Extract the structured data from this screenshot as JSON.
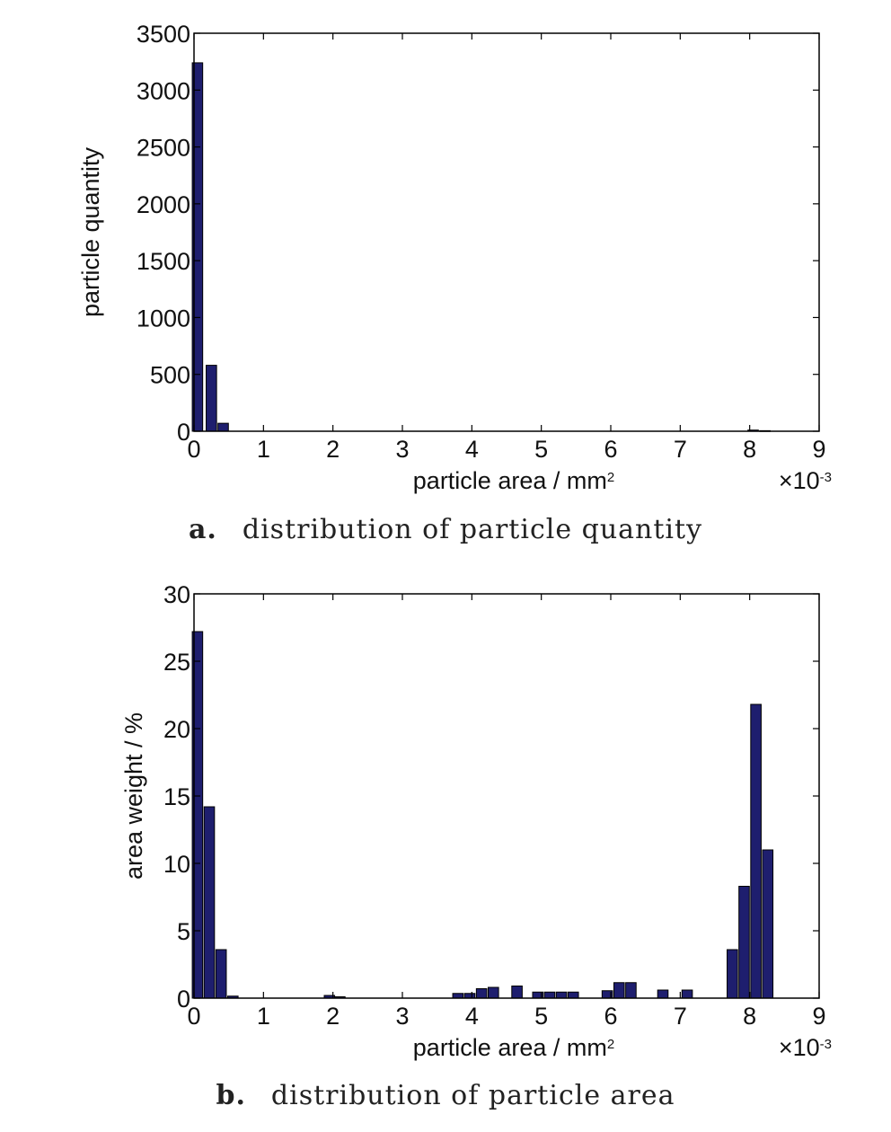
{
  "chart_data": [
    {
      "type": "bar",
      "x": [
        0.05,
        0.25,
        0.42,
        8.05,
        8.22
      ],
      "values": [
        3240,
        580,
        70,
        10,
        5
      ],
      "xlim": [
        0,
        9
      ],
      "ylim": [
        0,
        3500
      ],
      "xticks": [
        "0",
        "1",
        "2",
        "3",
        "4",
        "5",
        "6",
        "7",
        "8",
        "9"
      ],
      "yticks": [
        "0",
        "500",
        "1000",
        "1500",
        "2000",
        "2500",
        "3000",
        "3500"
      ],
      "xlabel": "particle area / mm",
      "xlabel_sup": "2",
      "ylabel": "particle quantity",
      "x_multiplier": "×10",
      "x_multiplier_exp": "-3",
      "grid": false,
      "bar_color": "#1e1e6e",
      "caption_letter": "a.",
      "caption_text": "distribution of particle quantity"
    },
    {
      "type": "bar",
      "x": [
        0.05,
        0.22,
        0.39,
        0.56,
        1.95,
        2.1,
        3.8,
        3.97,
        4.14,
        4.31,
        4.65,
        4.95,
        5.12,
        5.29,
        5.46,
        5.95,
        6.12,
        6.29,
        6.75,
        7.1,
        7.75,
        7.92,
        8.09,
        8.26
      ],
      "values": [
        27.2,
        14.2,
        3.6,
        0.15,
        0.2,
        0.1,
        0.35,
        0.35,
        0.7,
        0.8,
        0.9,
        0.45,
        0.45,
        0.45,
        0.45,
        0.55,
        1.15,
        1.15,
        0.6,
        0.6,
        3.6,
        8.3,
        21.8,
        11.0
      ],
      "xlim": [
        0,
        9
      ],
      "ylim": [
        0,
        30
      ],
      "xticks": [
        "0",
        "1",
        "2",
        "3",
        "4",
        "5",
        "6",
        "7",
        "8",
        "9"
      ],
      "yticks": [
        "0",
        "5",
        "10",
        "15",
        "20",
        "25",
        "30"
      ],
      "xlabel": "particle area / mm",
      "xlabel_sup": "2",
      "ylabel": "area weight / %",
      "x_multiplier": "×10",
      "x_multiplier_exp": "-3",
      "grid": false,
      "bar_color": "#1e1e6e",
      "caption_letter": "b.",
      "caption_text": "distribution of particle area"
    }
  ]
}
